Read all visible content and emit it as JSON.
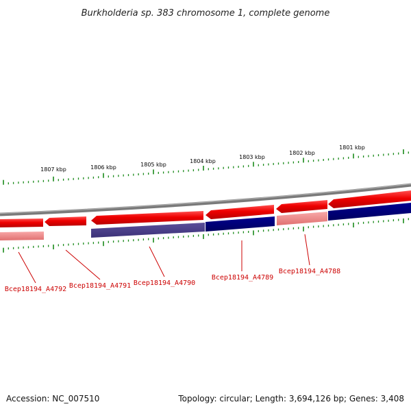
{
  "title": "Burkholderia sp. 383 chromosome 1, complete genome",
  "kbp_labels": [
    "1807 kbp",
    "1806 kbp",
    "1805 kbp",
    "1804 kbp",
    "1803 kbp",
    "1802 kbp",
    "1801 kbp"
  ],
  "genes": [
    "Bcep18194_A4792",
    "Bcep18194_A4791",
    "Bcep18194_A4790",
    "Bcep18194_A4789",
    "Bcep18194_A4788"
  ],
  "footer": {
    "accession": "Accession: NC_007510",
    "summary": "Topology: circular; Length: 3,694,126 bp; Genes: 3,408"
  },
  "colors": {
    "forward_gene": "#ee0000",
    "forward_gene_light": "#f08080",
    "reverse_gene": "#000080",
    "reverse_gene_muted": "#4a3f8a",
    "backbone": "#808080",
    "ticks": "#1a8a1a",
    "label": "#cc0000"
  }
}
